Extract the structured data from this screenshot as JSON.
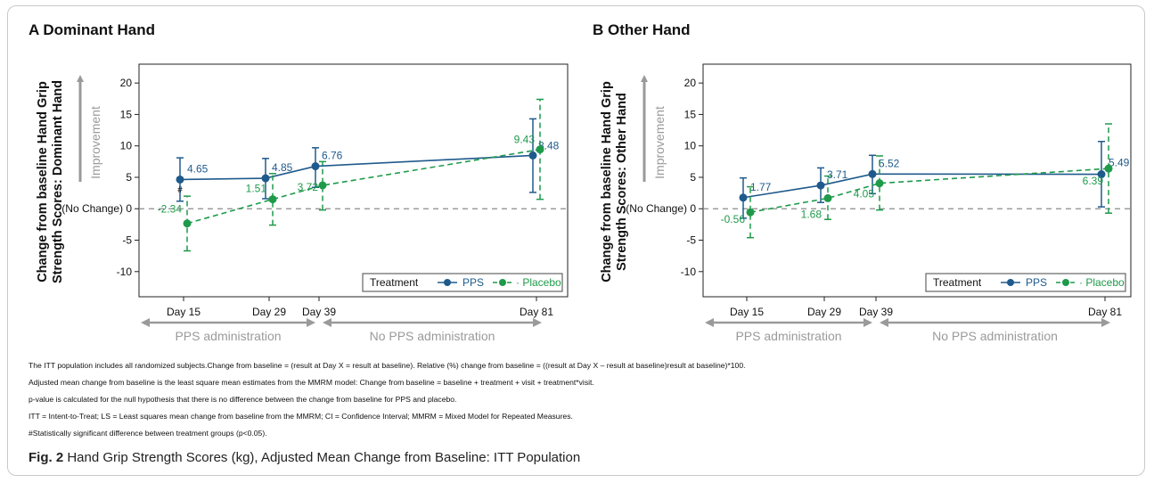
{
  "chart_data": [
    {
      "type": "line",
      "title": "A Dominant Hand",
      "ylabel_line1": "Change from baseline Hand Grip",
      "ylabel_line2": "Strength Scores: Dominant Hand",
      "improvement_label": "Improvement",
      "zero_label": "(No Change) 0",
      "x": [
        "Day 15",
        "Day 29",
        "Day 39",
        "Day 81"
      ],
      "x_values": [
        15,
        29,
        39,
        81
      ],
      "xlim": [
        15,
        81
      ],
      "ylim": [
        -14,
        23
      ],
      "yticks": [
        -10,
        -5,
        5,
        10,
        15,
        20
      ],
      "legend": {
        "title": "Treatment",
        "placement": "bottom-right"
      },
      "series": [
        {
          "name": "PPS",
          "color": "#1f5a8c",
          "style": "solid",
          "values": [
            4.65,
            4.85,
            6.76,
            8.48
          ],
          "lower": [
            1.2,
            1.6,
            3.4,
            2.6
          ],
          "upper": [
            8.1,
            8.0,
            9.7,
            14.3
          ],
          "labels": [
            "4.65",
            "4.85",
            "6.76",
            "8.48"
          ]
        },
        {
          "name": "Placebo",
          "color": "#1e9a4a",
          "style": "dashed",
          "values": [
            -2.34,
            1.51,
            3.72,
            9.43
          ],
          "lower": [
            -6.7,
            -2.6,
            -0.2,
            1.5
          ],
          "upper": [
            2.0,
            5.6,
            7.5,
            17.4
          ],
          "labels": [
            "-2.34",
            "1.51",
            "3.72",
            "9.43"
          ]
        }
      ],
      "annotations": [
        {
          "text": "#",
          "x": 15
        }
      ],
      "phases": [
        {
          "label": "PPS administration",
          "from": 15,
          "to": 39
        },
        {
          "label": "No PPS administration",
          "from": 39,
          "to": 81
        }
      ]
    },
    {
      "type": "line",
      "title": "B Other Hand",
      "ylabel_line1": "Change from baseline Hand Grip",
      "ylabel_line2": "Strength Scores: Other Hand",
      "improvement_label": "Improvement",
      "zero_label": "(No Change) 0",
      "x": [
        "Day 15",
        "Day 29",
        "Day 39",
        "Day 81"
      ],
      "x_values": [
        15,
        29,
        39,
        81
      ],
      "xlim": [
        15,
        81
      ],
      "ylim": [
        -14,
        23
      ],
      "yticks": [
        -10,
        -5,
        5,
        10,
        15,
        20
      ],
      "legend": {
        "title": "Treatment",
        "placement": "bottom-right"
      },
      "series": [
        {
          "name": "PPS",
          "color": "#1f5a8c",
          "style": "solid",
          "values": [
            1.77,
            3.71,
            5.52,
            5.49
          ],
          "lower": [
            -1.5,
            1.0,
            2.4,
            0.3
          ],
          "upper": [
            4.9,
            6.5,
            8.5,
            10.7
          ],
          "labels": [
            "1.77",
            "3.71",
            "5.52",
            "5.49"
          ]
        },
        {
          "name": "Placebo",
          "color": "#1e9a4a",
          "style": "dashed",
          "values": [
            -0.56,
            1.68,
            4.05,
            6.39
          ],
          "lower": [
            -4.6,
            -1.7,
            -0.2,
            -0.7
          ],
          "upper": [
            3.5,
            5.2,
            8.4,
            13.5
          ],
          "labels": [
            "-0.56",
            "1.68",
            "4.05",
            "6.39"
          ]
        }
      ],
      "annotations": [],
      "phases": [
        {
          "label": "PPS administration",
          "from": 15,
          "to": 39
        },
        {
          "label": "No PPS administration",
          "from": 39,
          "to": 81
        }
      ]
    }
  ],
  "notes": [
    "The ITT population includes all randomized subjects.Change from baseline = (result at Day X = result at baseline). Relative (%) change from baseline = ((result at Day X – result at baseline)result at baseline)*100.",
    "Adjusted mean change from baseline is the least square mean estimates from the MMRM model: Change from baseline = baseline + treatment + visit + treatment*visit.",
    "p-value is calculated for the null hypothesis that there is no difference between the change from baseline for PPS and placebo.",
    "ITT = Intent-to-Treat; LS = Least squares mean change from baseline from the MMRM; CI = Confidence Interval; MMRM = Mixed Model for Repeated Measures.",
    "#Statistically significant difference between treatment groups (p<0.05)."
  ],
  "caption": {
    "label": "Fig. 2",
    "text": "Hand Grip Strength Scores (kg), Adjusted Mean Change from Baseline: ITT Population"
  }
}
